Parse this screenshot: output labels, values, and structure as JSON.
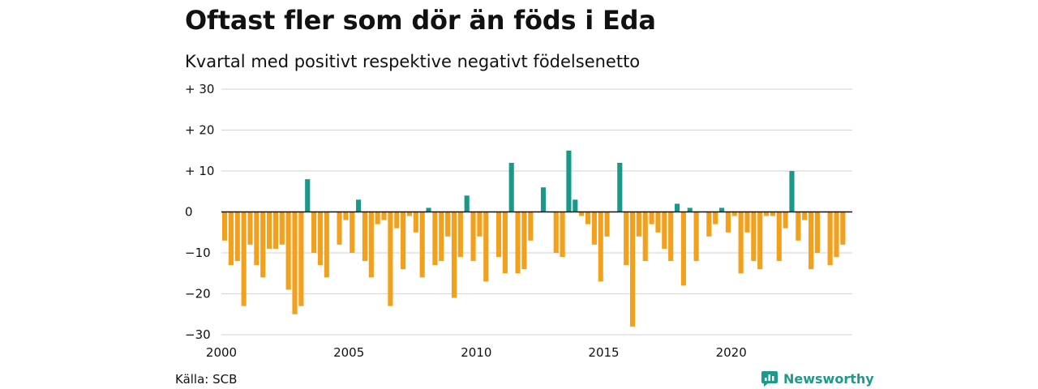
{
  "title": "Oftast fler som dör än föds i Eda",
  "subtitle": "Kvartal med positivt respektive negativt födelsenetto",
  "source": "Källa: SCB",
  "brand": {
    "name": "Newsworthy",
    "icon": "newsworthy-logo-icon"
  },
  "colors": {
    "positive": "#1a998b",
    "negative": "#f3a11d",
    "grid": "#d9d9d9",
    "zero": "#111111"
  },
  "chart_data": {
    "type": "bar",
    "title": "Oftast fler som dör än föds i Eda",
    "subtitle": "Kvartal med positivt respektive negativt födelsenetto",
    "xlabel": "",
    "ylabel": "",
    "ylim": [
      -30,
      30
    ],
    "xlim": [
      2000,
      2024.75
    ],
    "grid": true,
    "y_ticks": [
      {
        "value": 30,
        "label": "+ 30"
      },
      {
        "value": 20,
        "label": "+ 20"
      },
      {
        "value": 10,
        "label": "+ 10"
      },
      {
        "value": 0,
        "label": "0"
      },
      {
        "value": -10,
        "label": "−10"
      },
      {
        "value": -20,
        "label": "−20"
      },
      {
        "value": -30,
        "label": "−30"
      }
    ],
    "x_ticks": [
      {
        "value": 2000,
        "label": "2000"
      },
      {
        "value": 2005,
        "label": "2005"
      },
      {
        "value": 2010,
        "label": "2010"
      },
      {
        "value": 2015,
        "label": "2015"
      },
      {
        "value": 2020,
        "label": "2020"
      }
    ],
    "start_year": 2000,
    "periods_per_year": 4,
    "values": [
      -7,
      -13,
      -12,
      -23,
      -8,
      -13,
      -16,
      -9,
      -9,
      -8,
      -19,
      -25,
      -23,
      8,
      -10,
      -13,
      -16,
      0,
      -8,
      -2,
      -10,
      3,
      -12,
      -16,
      -3,
      -2,
      -23,
      -4,
      -14,
      -1,
      -5,
      -16,
      1,
      -13,
      -12,
      -6,
      -21,
      -11,
      4,
      -12,
      -6,
      -17,
      0,
      -11,
      -15,
      12,
      -15,
      -14,
      -7,
      0,
      6,
      0,
      -10,
      -11,
      15,
      3,
      -1,
      -3,
      -8,
      -17,
      -6,
      0,
      12,
      -13,
      -28,
      -6,
      -12,
      -3,
      -5,
      -9,
      -12,
      2,
      -18,
      1,
      -12,
      0,
      -6,
      -3,
      1,
      -5,
      -1,
      -15,
      -5,
      -12,
      -14,
      -1,
      -1,
      -12,
      -4,
      10,
      -7,
      -2,
      -14,
      -10,
      0,
      -13,
      -11,
      -8
    ]
  }
}
